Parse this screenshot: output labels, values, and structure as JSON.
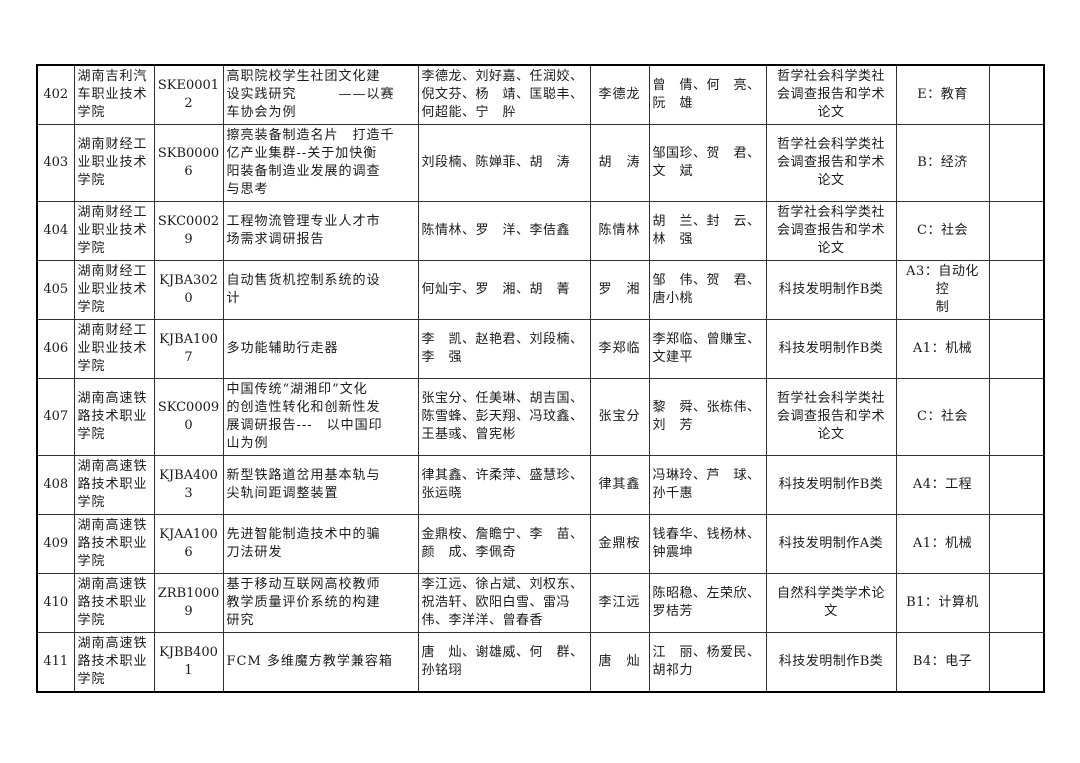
{
  "document": {
    "background_color": "#ffffff",
    "text_color": "#1a1a1a",
    "border_color": "#303030"
  },
  "table": {
    "rows": [
      {
        "no": "402",
        "institution": "湖南吉利汽\n车职业技术\n学院",
        "code": "SKE00012",
        "title": "高职院校学生社团文化建\n设实践研究　　　——以赛\n车协会为例",
        "authors": "李德龙、刘好嘉、任润姣、\n倪文芬、杨　靖、匡聪丰、\n何超能、宁　肸",
        "first_author": "李德龙",
        "advisors": "曾　倩、何　亮、\n阮　雄",
        "category": "哲学社会科学类社\n会调查报告和学术\n论文",
        "type": "E：教育",
        "extra": ""
      },
      {
        "no": "403",
        "institution": "湖南财经工\n业职业技术\n学院",
        "code": "SKB00006",
        "title": "擦亮装备制造名片　打造千\n亿产业集群--关于加快衡\n阳装备制造业发展的调查\n与思考",
        "authors": "刘段楠、陈婵菲、胡　涛",
        "first_author": "胡　涛",
        "advisors": "邹国珍、贺　君、\n文　斌",
        "category": "哲学社会科学类社\n会调查报告和学术\n论文",
        "type": "B：经济",
        "extra": ""
      },
      {
        "no": "404",
        "institution": "湖南财经工\n业职业技术\n学院",
        "code": "SKC00029",
        "title": "工程物流管理专业人才市\n场需求调研报告",
        "authors": "陈情林、罗　洋、李佶鑫",
        "first_author": "陈情林",
        "advisors": "胡　兰、封　云、\n林　强",
        "category": "哲学社会科学类社\n会调查报告和学术\n论文",
        "type": "C：社会",
        "extra": ""
      },
      {
        "no": "405",
        "institution": "湖南财经工\n业职业技术\n学院",
        "code": "KJBA3020",
        "title": "自动售货机控制系统的设\n计",
        "authors": "何灿宇、罗　湘、胡　菁",
        "first_author": "罗　湘",
        "advisors": "邹　伟、贺　君、\n唐小桃",
        "category": "科技发明制作B类",
        "type": "A3：自动化控\n制",
        "extra": ""
      },
      {
        "no": "406",
        "institution": "湖南财经工\n业职业技术\n学院",
        "code": "KJBA1007",
        "title": "多功能辅助行走器",
        "authors": "李　凯、赵艳君、刘段楠、\n李　强",
        "first_author": "李郑临",
        "advisors": "李郑临、曾赚宝、\n文建平",
        "category": "科技发明制作B类",
        "type": "A1：机械",
        "extra": ""
      },
      {
        "no": "407",
        "institution": "湖南高速铁\n路技术职业\n学院",
        "code": "SKC00090",
        "title": "中国传统“湖湘印”文化\n的创造性转化和创新性发\n展调研报告---　以中国印\n山为例",
        "authors": "张宝分、任美琳、胡吉国、\n陈雪蜂、彭天翔、冯玟鑫、\n王基彧、曾宪彬",
        "first_author": "张宝分",
        "advisors": "黎　舜、张栋伟、\n刘　芳",
        "category": "哲学社会科学类社\n会调查报告和学术\n论文",
        "type": "C：社会",
        "extra": ""
      },
      {
        "no": "408",
        "institution": "湖南高速铁\n路技术职业\n学院",
        "code": "KJBA4003",
        "title": "新型铁路道岔用基本轨与\n尖轨间距调整装置",
        "authors": "律其鑫、许柔萍、盛慧珍、\n张运晓",
        "first_author": "律其鑫",
        "advisors": "冯琳玲、芦　球、\n孙千惠",
        "category": "科技发明制作B类",
        "type": "A4：工程",
        "extra": ""
      },
      {
        "no": "409",
        "institution": "湖南高速铁\n路技术职业\n学院",
        "code": "KJAA1006",
        "title": "先进智能制造技术中的骗\n刀法研发",
        "authors": "金鼎桉、詹瞻宁、李　苗、\n颜　成、李佩奇",
        "first_author": "金鼎桉",
        "advisors": "钱春华、钱杨林、\n钟震坤",
        "category": "科技发明制作A类",
        "type": "A1：机械",
        "extra": ""
      },
      {
        "no": "410",
        "institution": "湖南高速铁\n路技术职业\n学院",
        "code": "ZRB10009",
        "title": "基于移动互联网高校教师\n教学质量评价系统的构建\n研究",
        "authors": "李江远、徐占斌、刘权东、\n祝浩轩、欧阳白雪、雷冯\n伟、李洋洋、曾春香",
        "first_author": "李江远",
        "advisors": "陈昭稳、左荣欣、\n罗桔芳",
        "category": "自然科学类学术论\n文",
        "type": "B1：计算机",
        "extra": ""
      },
      {
        "no": "411",
        "institution": "湖南高速铁\n路技术职业\n学院",
        "code": "KJBB4001",
        "title": "FCM 多维魔方教学兼容箱",
        "authors": "唐　灿、谢雄威、何　群、\n孙铭珝",
        "first_author": "唐　灿",
        "advisors": "江　丽、杨爱民、\n胡祁力",
        "category": "科技发明制作B类",
        "type": "B4：电子",
        "extra": ""
      }
    ]
  }
}
